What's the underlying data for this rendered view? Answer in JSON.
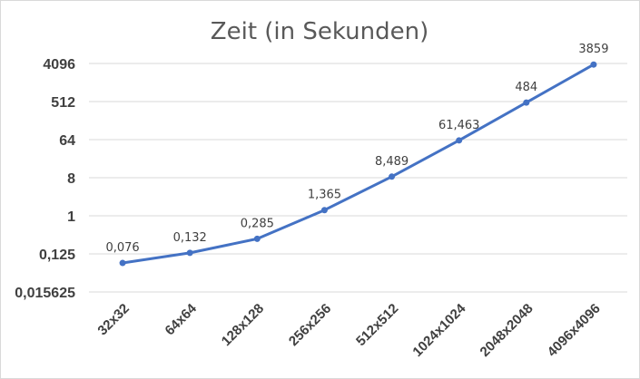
{
  "chart_data": {
    "type": "line",
    "title": "Zeit (in Sekunden)",
    "xlabel": "",
    "ylabel": "",
    "y_scale": "log2",
    "ylim": [
      0.015625,
      4096
    ],
    "y_ticks": [
      "0,015625",
      "0,125",
      "1",
      "8",
      "64",
      "512",
      "4096"
    ],
    "y_tick_values": [
      0.015625,
      0.125,
      1,
      8,
      64,
      512,
      4096
    ],
    "grid": true,
    "legend": "none",
    "categories": [
      "32x32",
      "64x64",
      "128x128",
      "256x256",
      "512x512",
      "1024x1024",
      "2048x2048",
      "4096x4096"
    ],
    "series": [
      {
        "values": [
          0.076,
          0.132,
          0.285,
          1.365,
          8.489,
          61.463,
          484,
          3859
        ],
        "labels": [
          "0,076",
          "0,132",
          "0,285",
          "1,365",
          "8,489",
          "61,463",
          "484",
          "3859"
        ],
        "color": "#4472c4"
      }
    ]
  }
}
